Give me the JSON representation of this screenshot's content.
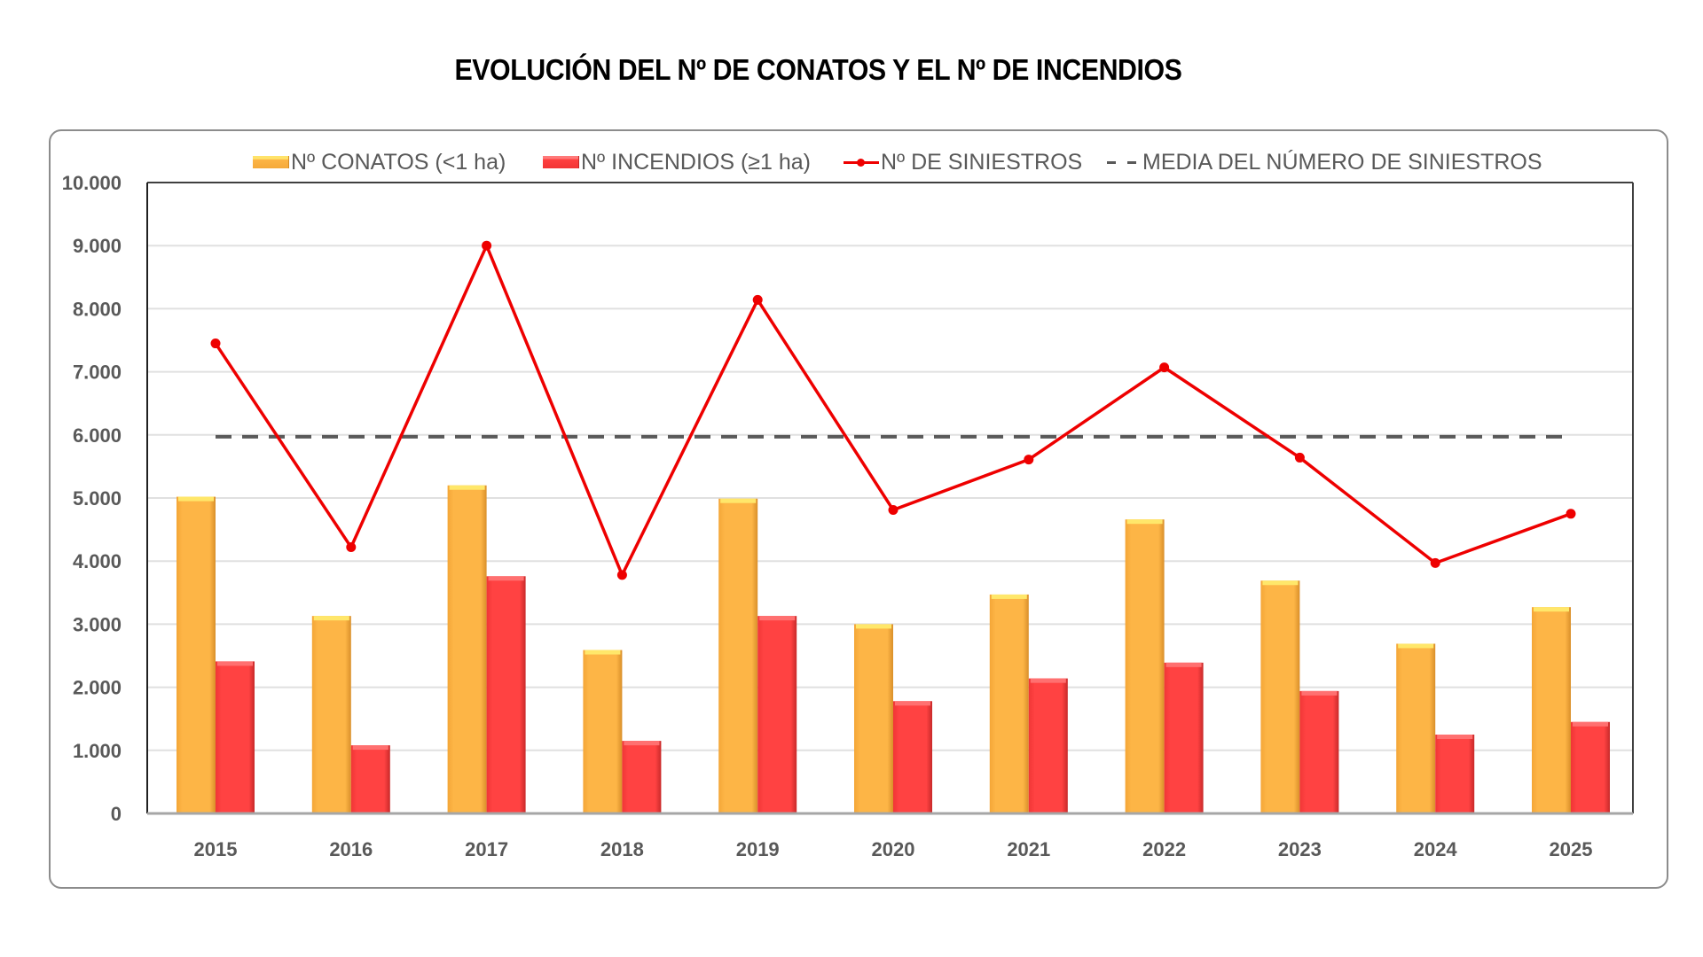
{
  "chart_data": {
    "type": "bar",
    "title": "EVOLUCIÓN DEL Nº DE CONATOS Y EL Nº DE INCENDIOS",
    "xlabel": "",
    "ylabel": "",
    "ylim": [
      0,
      10000
    ],
    "yticks": [
      0,
      1000,
      2000,
      3000,
      4000,
      5000,
      6000,
      7000,
      8000,
      9000,
      10000
    ],
    "ytick_labels": [
      "0",
      "1.000",
      "2.000",
      "3.000",
      "4.000",
      "5.000",
      "6.000",
      "7.000",
      "8.000",
      "9.000",
      "10.000"
    ],
    "grid": true,
    "legend_position": "top",
    "categories": [
      "2015",
      "2016",
      "2017",
      "2018",
      "2019",
      "2020",
      "2021",
      "2022",
      "2023",
      "2024",
      "2025"
    ],
    "series": [
      {
        "name": "Nº CONATOS (<1 ha)",
        "type": "bar",
        "color": "#FDB546",
        "values": [
          5020,
          3130,
          5200,
          2590,
          4990,
          3000,
          3470,
          4660,
          3690,
          2690,
          3270
        ]
      },
      {
        "name": "Nº INCENDIOS (≥1 ha)",
        "type": "bar",
        "color": "#FF4040",
        "values": [
          2410,
          1080,
          3760,
          1150,
          3130,
          1780,
          2140,
          2390,
          1940,
          1250,
          1450
        ]
      },
      {
        "name": "Nº DE SINIESTROS",
        "type": "line",
        "color": "#EE0000",
        "values": [
          7450,
          4220,
          9000,
          3780,
          8140,
          4810,
          5610,
          7070,
          5640,
          3970,
          4750
        ]
      },
      {
        "name": "MEDIA DEL NÚMERO DE SINIESTROS",
        "type": "line-dashed",
        "color": "#595959",
        "values": [
          5970,
          5970,
          5970,
          5970,
          5970,
          5970,
          5970,
          5970,
          5970,
          5970,
          5970
        ]
      }
    ]
  },
  "legend": {
    "conatos": "Nº CONATOS (<1 ha)",
    "incendios": "Nº INCENDIOS (≥1 ha)",
    "siniestros": "Nº DE SINIESTROS",
    "media": "MEDIA DEL NÚMERO DE SINIESTROS"
  }
}
